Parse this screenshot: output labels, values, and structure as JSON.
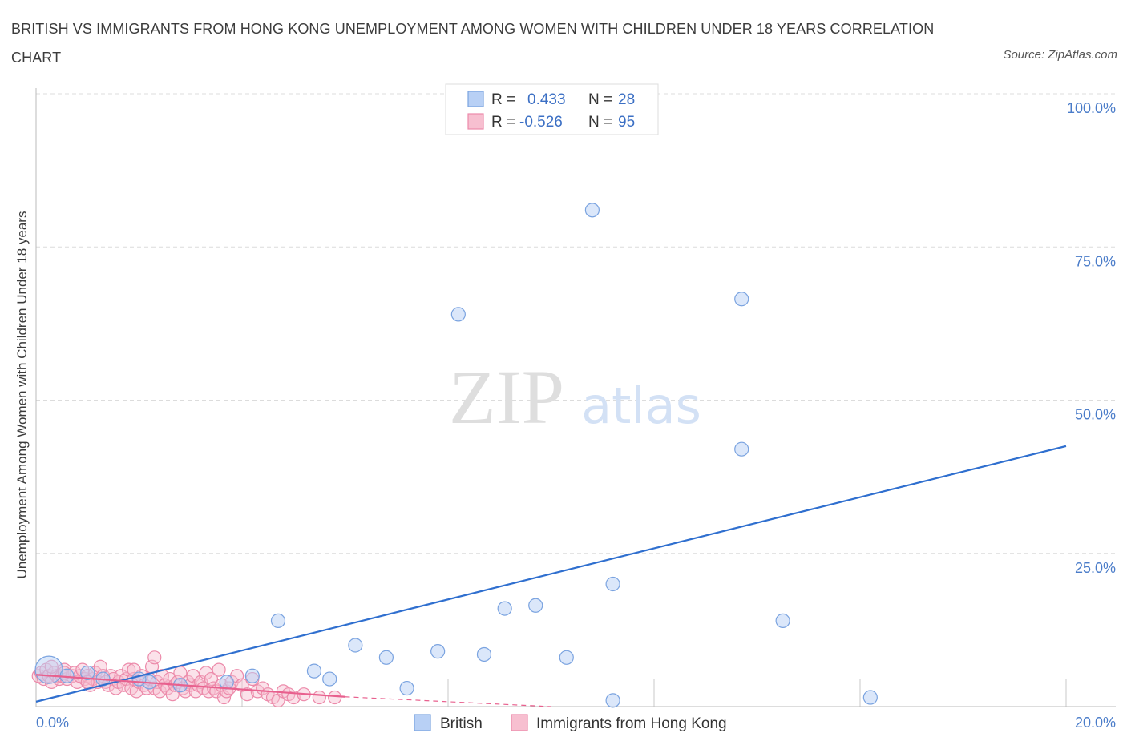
{
  "title": "BRITISH VS IMMIGRANTS FROM HONG KONG UNEMPLOYMENT AMONG WOMEN WITH CHILDREN UNDER 18 YEARS CORRELATION CHART",
  "source": "Source: ZipAtlas.com",
  "watermark": {
    "zip": "ZIP",
    "atlas": "atlas"
  },
  "legend": {
    "r_label": "R =",
    "n_label": "N =",
    "rows": [
      {
        "r": "0.433",
        "n": "28"
      },
      {
        "r": "-0.526",
        "n": "95"
      }
    ]
  },
  "colors": {
    "british_fill": "#b8d0f5",
    "british_stroke": "#7aa3e0",
    "british_line": "#2f6fcf",
    "hk_fill": "#f7bfd0",
    "hk_stroke": "#ec8aaa",
    "hk_line": "#e8608e"
  },
  "chart_data": {
    "type": "scatter",
    "xlabel": "",
    "ylabel": "Unemployment Among Women with Children Under 18 years",
    "xlim": [
      0,
      20
    ],
    "ylim": [
      0,
      100
    ],
    "x_tick_labels": [
      "0.0%",
      "20.0%"
    ],
    "y_tick_labels": [
      "25.0%",
      "50.0%",
      "75.0%",
      "100.0%"
    ],
    "grid": true,
    "legend_position": "top-center",
    "series": [
      {
        "name": "British",
        "points": [
          [
            0.25,
            6.0
          ],
          [
            0.6,
            5.0
          ],
          [
            1.3,
            4.5
          ],
          [
            2.2,
            4.0
          ],
          [
            2.8,
            3.5
          ],
          [
            3.7,
            4.0
          ],
          [
            4.2,
            5.0
          ],
          [
            4.7,
            14.0
          ],
          [
            5.4,
            5.8
          ],
          [
            5.7,
            4.5
          ],
          [
            6.2,
            10.0
          ],
          [
            6.8,
            8.0
          ],
          [
            7.2,
            3.0
          ],
          [
            7.8,
            9.0
          ],
          [
            8.2,
            64.0
          ],
          [
            8.7,
            8.5
          ],
          [
            9.1,
            16.0
          ],
          [
            9.7,
            16.5
          ],
          [
            10.3,
            8.0
          ],
          [
            10.8,
            81.0
          ],
          [
            11.2,
            20.0
          ],
          [
            11.2,
            1.0
          ],
          [
            13.7,
            42.0
          ],
          [
            13.7,
            66.5
          ],
          [
            14.5,
            14.0
          ],
          [
            16.2,
            1.5
          ],
          [
            1.0,
            5.5
          ],
          [
            2.0,
            4.5
          ]
        ]
      },
      {
        "name": "Immigrants from Hong Kong",
        "points": [
          [
            0.05,
            5.0
          ],
          [
            0.1,
            5.5
          ],
          [
            0.15,
            4.5
          ],
          [
            0.2,
            6.0
          ],
          [
            0.25,
            5.0
          ],
          [
            0.3,
            4.0
          ],
          [
            0.35,
            5.5
          ],
          [
            0.4,
            5.0
          ],
          [
            0.45,
            4.5
          ],
          [
            0.5,
            5.0
          ],
          [
            0.55,
            6.0
          ],
          [
            0.6,
            4.5
          ],
          [
            0.7,
            5.0
          ],
          [
            0.75,
            5.5
          ],
          [
            0.8,
            4.0
          ],
          [
            0.85,
            5.0
          ],
          [
            0.9,
            6.0
          ],
          [
            0.95,
            4.5
          ],
          [
            1.0,
            5.0
          ],
          [
            1.05,
            3.5
          ],
          [
            1.1,
            4.5
          ],
          [
            1.15,
            5.5
          ],
          [
            1.2,
            4.0
          ],
          [
            1.25,
            6.5
          ],
          [
            1.3,
            5.0
          ],
          [
            1.35,
            4.0
          ],
          [
            1.4,
            3.5
          ],
          [
            1.45,
            5.0
          ],
          [
            1.5,
            4.5
          ],
          [
            1.55,
            3.0
          ],
          [
            1.6,
            4.0
          ],
          [
            1.65,
            5.0
          ],
          [
            1.7,
            3.5
          ],
          [
            1.75,
            4.5
          ],
          [
            1.8,
            6.0
          ],
          [
            1.85,
            3.0
          ],
          [
            1.9,
            4.5
          ],
          [
            1.95,
            2.5
          ],
          [
            2.0,
            4.0
          ],
          [
            2.05,
            5.0
          ],
          [
            2.1,
            3.5
          ],
          [
            2.15,
            3.0
          ],
          [
            2.2,
            4.5
          ],
          [
            2.25,
            6.5
          ],
          [
            2.3,
            3.0
          ],
          [
            2.35,
            4.0
          ],
          [
            2.4,
            2.5
          ],
          [
            2.45,
            5.0
          ],
          [
            2.5,
            3.5
          ],
          [
            2.55,
            3.0
          ],
          [
            2.6,
            4.5
          ],
          [
            2.65,
            2.0
          ],
          [
            2.7,
            3.5
          ],
          [
            2.75,
            4.0
          ],
          [
            2.8,
            5.5
          ],
          [
            2.85,
            3.0
          ],
          [
            2.9,
            2.5
          ],
          [
            2.95,
            4.0
          ],
          [
            3.0,
            3.5
          ],
          [
            3.05,
            5.0
          ],
          [
            3.1,
            2.5
          ],
          [
            3.15,
            3.5
          ],
          [
            3.2,
            4.0
          ],
          [
            3.25,
            3.0
          ],
          [
            3.3,
            5.5
          ],
          [
            3.35,
            2.5
          ],
          [
            3.4,
            4.5
          ],
          [
            3.45,
            3.0
          ],
          [
            3.5,
            2.5
          ],
          [
            3.55,
            6.0
          ],
          [
            3.6,
            3.5
          ],
          [
            3.65,
            1.5
          ],
          [
            3.7,
            2.5
          ],
          [
            3.75,
            3.0
          ],
          [
            3.8,
            4.0
          ],
          [
            3.9,
            5.0
          ],
          [
            4.0,
            3.5
          ],
          [
            4.1,
            2.0
          ],
          [
            4.2,
            4.5
          ],
          [
            4.3,
            2.5
          ],
          [
            4.4,
            3.0
          ],
          [
            4.5,
            2.0
          ],
          [
            4.6,
            1.5
          ],
          [
            4.7,
            1.0
          ],
          [
            4.8,
            2.5
          ],
          [
            4.9,
            2.0
          ],
          [
            5.0,
            1.5
          ],
          [
            5.2,
            2.0
          ],
          [
            5.5,
            1.5
          ],
          [
            5.8,
            1.5
          ],
          [
            2.3,
            8.0
          ],
          [
            1.9,
            6.0
          ],
          [
            0.55,
            5.5
          ],
          [
            1.0,
            4.0
          ],
          [
            0.3,
            6.5
          ]
        ]
      }
    ],
    "trend_lines": [
      {
        "series": "British",
        "x": [
          0,
          20
        ],
        "y": [
          0.8,
          42.5
        ]
      },
      {
        "series": "Immigrants from Hong Kong",
        "x": [
          0,
          6.0
        ],
        "y": [
          5.2,
          1.6
        ],
        "dashed_to": [
          10.0,
          -0.8
        ]
      }
    ]
  }
}
